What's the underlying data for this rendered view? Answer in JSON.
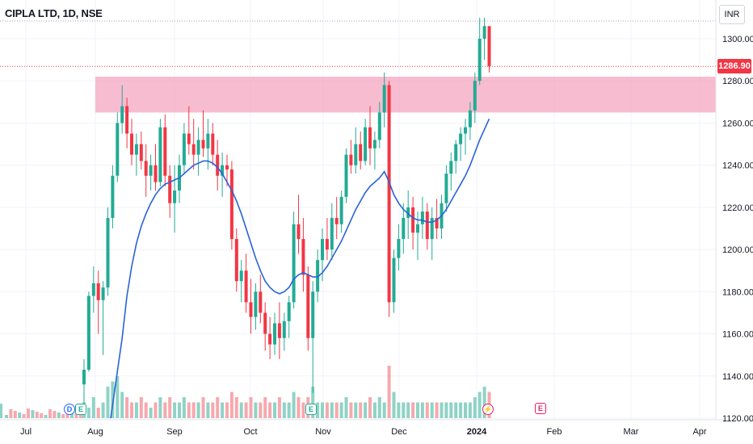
{
  "header": {
    "symbol_title": "CIPLA LTD, 1D, NSE",
    "currency": "INR"
  },
  "last_price": {
    "label": "1286.90",
    "value": 1286.9
  },
  "colors": {
    "up": "#22ab94",
    "down": "#f23645",
    "ma": "#2a62d9",
    "zone": "#f48fb1",
    "vol_up": "#8fd3c6",
    "vol_down": "#f6a9ae"
  },
  "events": [
    {
      "type": "dividend",
      "letter": "D"
    },
    {
      "type": "earnings",
      "letter": "E"
    },
    {
      "type": "earnings",
      "letter": "E"
    },
    {
      "type": "split",
      "letter": "⚡"
    },
    {
      "type": "earnings_upcoming",
      "letter": "E"
    }
  ],
  "chart_data": {
    "type": "candlestick",
    "title": "CIPLA LTD, 1D, NSE",
    "x_tick_labels": [
      "Jul",
      "Aug",
      "Sep",
      "Oct",
      "Nov",
      "Dec",
      "2024",
      "Feb",
      "Mar",
      "Apr"
    ],
    "y_tick_labels": [
      "1300.00",
      "1280.00",
      "1260.00",
      "1240.00",
      "1220.00",
      "1200.00",
      "1180.00",
      "1160.00",
      "1140.00",
      "1120.00"
    ],
    "ylim": [
      1120,
      1314
    ],
    "grid": true,
    "supply_zone": {
      "from": 1265,
      "to": 1282
    },
    "last_price": 1286.9,
    "series": [
      {
        "type": "ohlc",
        "ohlc": [
          [
            1136,
            1148,
            1122,
            1143
          ],
          [
            1143,
            1180,
            1142,
            1178
          ],
          [
            1178,
            1192,
            1170,
            1184
          ],
          [
            1184,
            1190,
            1160,
            1176
          ],
          [
            1176,
            1185,
            1150,
            1182
          ],
          [
            1182,
            1220,
            1178,
            1215
          ],
          [
            1215,
            1240,
            1210,
            1235
          ],
          [
            1235,
            1265,
            1232,
            1260
          ],
          [
            1260,
            1278,
            1255,
            1268
          ],
          [
            1268,
            1272,
            1248,
            1255
          ],
          [
            1255,
            1262,
            1240,
            1245
          ],
          [
            1245,
            1255,
            1235,
            1250
          ],
          [
            1250,
            1256,
            1238,
            1242
          ],
          [
            1242,
            1250,
            1225,
            1235
          ],
          [
            1235,
            1245,
            1228,
            1240
          ],
          [
            1240,
            1250,
            1228,
            1232
          ],
          [
            1232,
            1262,
            1230,
            1258
          ],
          [
            1258,
            1264,
            1230,
            1235
          ],
          [
            1235,
            1240,
            1215,
            1222
          ],
          [
            1222,
            1240,
            1208,
            1228
          ],
          [
            1228,
            1245,
            1222,
            1240
          ],
          [
            1240,
            1260,
            1236,
            1255
          ],
          [
            1255,
            1268,
            1245,
            1250
          ],
          [
            1250,
            1262,
            1238,
            1245
          ],
          [
            1245,
            1258,
            1235,
            1252
          ],
          [
            1252,
            1266,
            1244,
            1248
          ],
          [
            1248,
            1262,
            1238,
            1255
          ],
          [
            1255,
            1260,
            1240,
            1245
          ],
          [
            1245,
            1252,
            1228,
            1235
          ],
          [
            1235,
            1246,
            1225,
            1240
          ],
          [
            1240,
            1245,
            1230,
            1238
          ],
          [
            1238,
            1242,
            1200,
            1205
          ],
          [
            1205,
            1210,
            1180,
            1185
          ],
          [
            1185,
            1195,
            1175,
            1190
          ],
          [
            1190,
            1198,
            1170,
            1175
          ],
          [
            1175,
            1186,
            1160,
            1168
          ],
          [
            1168,
            1184,
            1162,
            1180
          ],
          [
            1180,
            1188,
            1165,
            1170
          ],
          [
            1170,
            1175,
            1152,
            1160
          ],
          [
            1160,
            1168,
            1148,
            1155
          ],
          [
            1155,
            1170,
            1150,
            1165
          ],
          [
            1165,
            1175,
            1148,
            1158
          ],
          [
            1158,
            1170,
            1152,
            1166
          ],
          [
            1166,
            1178,
            1158,
            1175
          ],
          [
            1175,
            1218,
            1172,
            1212
          ],
          [
            1212,
            1226,
            1198,
            1205
          ],
          [
            1205,
            1215,
            1180,
            1188
          ],
          [
            1188,
            1192,
            1152,
            1158
          ],
          [
            1158,
            1185,
            1132,
            1180
          ],
          [
            1180,
            1200,
            1175,
            1195
          ],
          [
            1195,
            1210,
            1185,
            1205
          ],
          [
            1205,
            1215,
            1195,
            1200
          ],
          [
            1200,
            1222,
            1195,
            1215
          ],
          [
            1215,
            1225,
            1205,
            1212
          ],
          [
            1212,
            1228,
            1208,
            1225
          ],
          [
            1225,
            1248,
            1222,
            1245
          ],
          [
            1245,
            1252,
            1236,
            1240
          ],
          [
            1240,
            1258,
            1236,
            1250
          ],
          [
            1250,
            1256,
            1238,
            1242
          ],
          [
            1242,
            1262,
            1240,
            1258
          ],
          [
            1258,
            1268,
            1240,
            1248
          ],
          [
            1248,
            1256,
            1238,
            1252
          ],
          [
            1252,
            1270,
            1248,
            1265
          ],
          [
            1265,
            1284,
            1258,
            1278
          ],
          [
            1278,
            1280,
            1168,
            1175
          ],
          [
            1175,
            1200,
            1170,
            1196
          ],
          [
            1196,
            1212,
            1190,
            1205
          ],
          [
            1205,
            1222,
            1198,
            1215
          ],
          [
            1215,
            1228,
            1205,
            1220
          ],
          [
            1220,
            1225,
            1200,
            1208
          ],
          [
            1208,
            1218,
            1195,
            1212
          ],
          [
            1212,
            1225,
            1205,
            1218
          ],
          [
            1218,
            1222,
            1200,
            1205
          ],
          [
            1205,
            1220,
            1195,
            1215
          ],
          [
            1215,
            1224,
            1205,
            1210
          ],
          [
            1210,
            1226,
            1205,
            1222
          ],
          [
            1222,
            1240,
            1218,
            1236
          ],
          [
            1236,
            1246,
            1228,
            1242
          ],
          [
            1242,
            1252,
            1236,
            1250
          ],
          [
            1250,
            1258,
            1242,
            1255
          ],
          [
            1255,
            1262,
            1245,
            1258
          ],
          [
            1258,
            1270,
            1252,
            1266
          ],
          [
            1266,
            1284,
            1260,
            1280
          ],
          [
            1280,
            1310,
            1278,
            1300
          ],
          [
            1300,
            1310,
            1290,
            1306
          ],
          [
            1306,
            1306,
            1284,
            1287
          ]
        ]
      },
      {
        "name": "",
        "type": "moving_average",
        "values": [
          null,
          null,
          null,
          null,
          null,
          null,
          null,
          null,
          1158,
          1178,
          1192,
          1203,
          1211,
          1217,
          1222,
          1226,
          1229,
          1231,
          1232,
          1233,
          1234,
          1236,
          1238,
          1240,
          1241,
          1242,
          1242,
          1241,
          1239,
          1236,
          1232,
          1228,
          1223,
          1217,
          1210,
          1203,
          1196,
          1190,
          1185,
          1182,
          1180,
          1179,
          1180,
          1182,
          1186,
          1188,
          1189,
          1188,
          1187,
          1187,
          1189,
          1192,
          1196,
          1200,
          1204,
          1209,
          1214,
          1219,
          1223,
          1227,
          1230,
          1232,
          1234,
          1237,
          1232,
          1226,
          1222,
          1219,
          1217,
          1215,
          1214,
          1214,
          1213,
          1213,
          1214,
          1216,
          1219,
          1223,
          1227,
          1231,
          1235,
          1240,
          1246,
          1252,
          1257,
          1262
        ]
      }
    ],
    "volume": [
      3,
      2,
      4,
      2,
      3,
      6,
      7,
      8,
      5,
      4,
      3,
      3,
      4,
      3,
      2,
      3,
      4,
      3,
      4,
      3,
      3,
      4,
      3,
      3,
      3,
      4,
      3,
      3,
      4,
      3,
      3,
      5,
      4,
      3,
      3,
      4,
      3,
      3,
      4,
      3,
      3,
      4,
      3,
      3,
      5,
      4,
      3,
      4,
      6,
      3,
      3,
      3,
      3,
      3,
      3,
      4,
      3,
      3,
      3,
      3,
      4,
      3,
      4,
      3,
      10,
      5,
      3,
      3,
      3,
      3,
      3,
      3,
      3,
      3,
      3,
      3,
      3,
      3,
      3,
      3,
      3,
      3,
      4,
      5,
      6,
      5
    ]
  }
}
